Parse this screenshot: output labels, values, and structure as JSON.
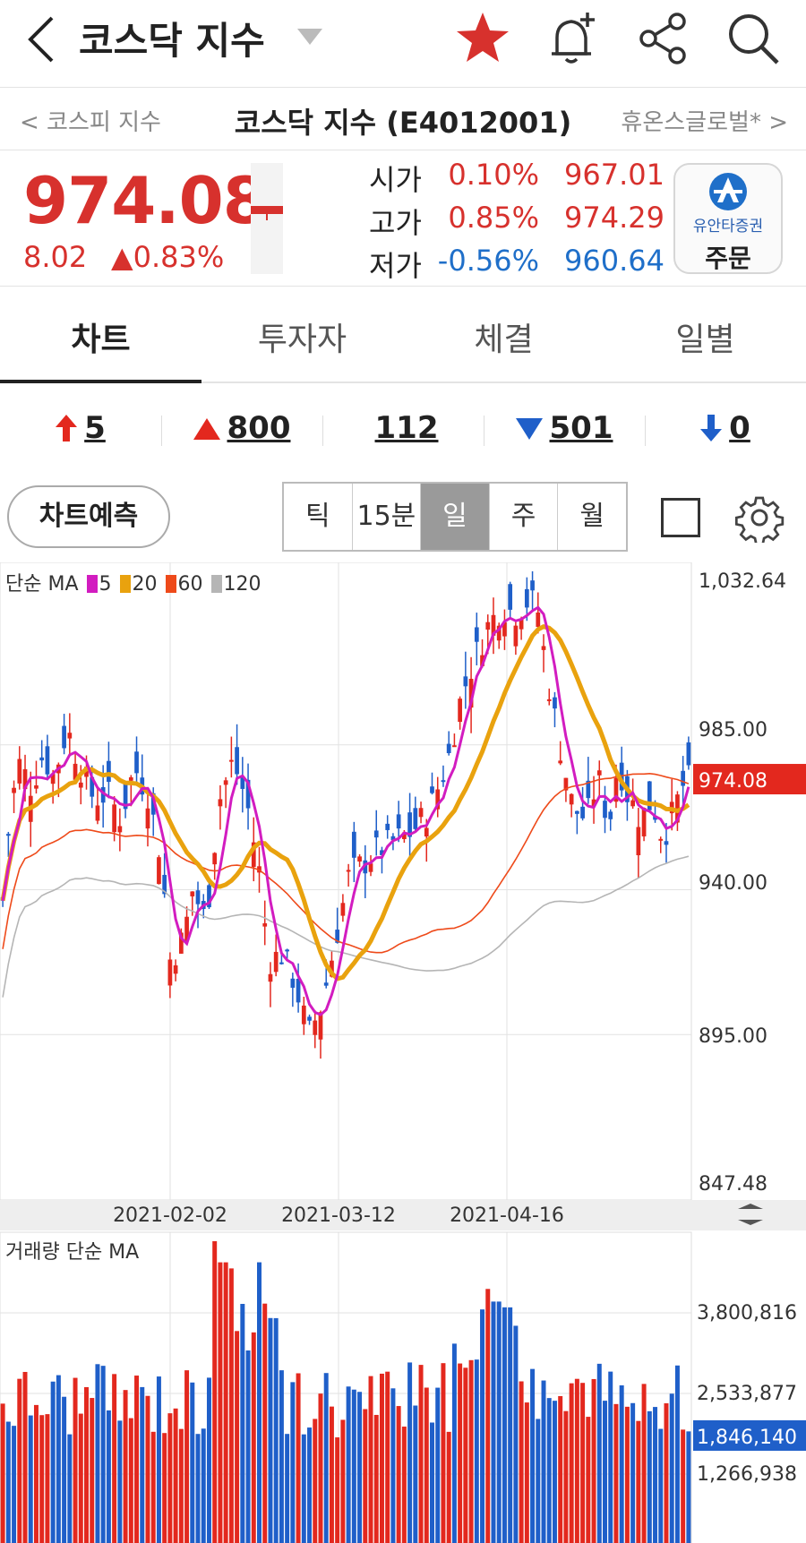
{
  "header": {
    "title": "코스닥 지수",
    "icons": [
      "back-icon",
      "dropdown-caret-icon",
      "star-icon",
      "bell-add-icon",
      "share-icon",
      "search-icon"
    ],
    "favorite_color": "#d7312d"
  },
  "nav": {
    "prev": "< 코스피 지수",
    "center": "코스닥 지수 (E4012001)",
    "next": "휴온스글로벌* >"
  },
  "price": {
    "current": "974.08",
    "change": "8.02",
    "change_pct": "▲0.83%",
    "open": {
      "label": "시가",
      "pct": "0.10%",
      "value": "967.01"
    },
    "high": {
      "label": "고가",
      "pct": "0.85%",
      "value": "974.29"
    },
    "low": {
      "label": "저가",
      "pct": "-0.56%",
      "value": "960.64"
    },
    "order": {
      "brand": "유안타증권",
      "label": "주문"
    }
  },
  "tabs": [
    {
      "label": "차트",
      "active": true
    },
    {
      "label": "투자자",
      "active": false
    },
    {
      "label": "체결",
      "active": false
    },
    {
      "label": "일별",
      "active": false
    }
  ],
  "breadth": {
    "upper_limit": "5",
    "up": "800",
    "unchanged": "112",
    "down": "501",
    "lower_limit": "0"
  },
  "controls": {
    "predict_label": "차트예측",
    "periods": [
      "틱",
      "15분",
      "일",
      "주",
      "월"
    ],
    "selected_period": "일"
  },
  "legend": {
    "title": "단순 MA",
    "items": [
      {
        "name": "5",
        "color": "#d21cc0"
      },
      {
        "name": "20",
        "color": "#e9a20e"
      },
      {
        "name": "60",
        "color": "#ee4a1a"
      },
      {
        "name": "120",
        "color": "#b5b5b5"
      }
    ]
  },
  "chart_data": {
    "type": "candlestick",
    "price_axis_labels": [
      "1,032.64",
      "985.00",
      "940.00",
      "895.00",
      "847.48"
    ],
    "price_ylim": [
      847.48,
      1032.64
    ],
    "current_price_label": "974.08",
    "date_labels": [
      "2021-02-02",
      "2021-03-12",
      "2021-04-16"
    ],
    "volume_title": "거래량 단순 MA",
    "volume_axis_labels": [
      "3,800,816",
      "2,533,877",
      "1,266,938"
    ],
    "current_volume_label": "1,846,140",
    "colors": {
      "up": "#e3281e",
      "down": "#1f5fc9",
      "ma5": "#d21cc0",
      "ma20": "#e9a20e",
      "ma60": "#ee4a1a",
      "ma120": "#b5b5b5"
    }
  }
}
